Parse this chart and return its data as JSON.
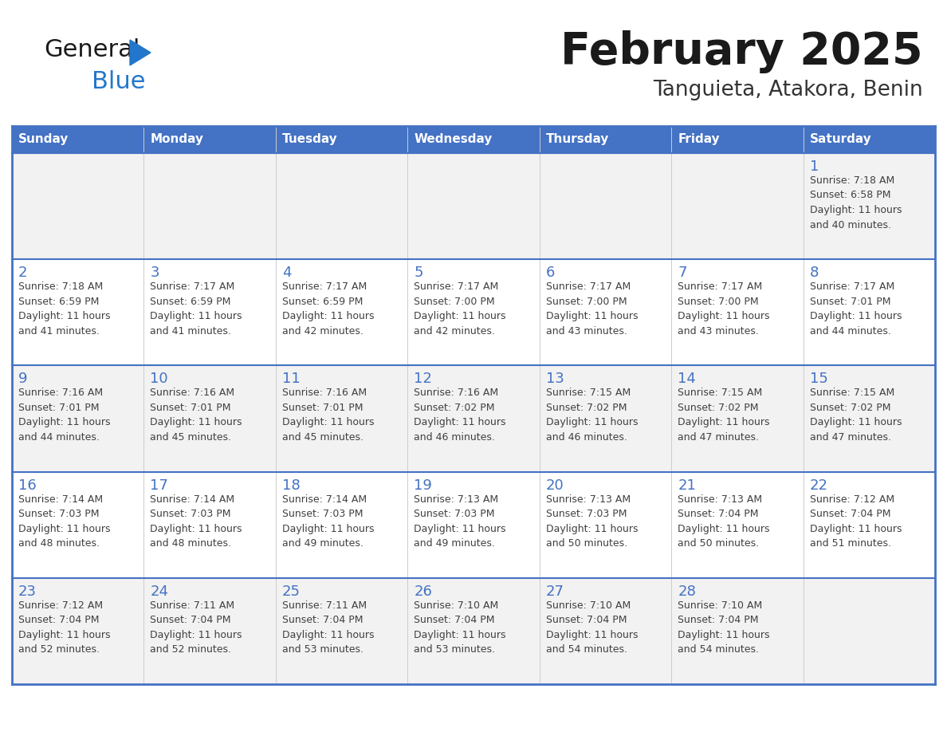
{
  "title": "February 2025",
  "subtitle": "Tanguieta, Atakora, Benin",
  "header_bg": "#4472C4",
  "header_text": "#FFFFFF",
  "day_names": [
    "Sunday",
    "Monday",
    "Tuesday",
    "Wednesday",
    "Thursday",
    "Friday",
    "Saturday"
  ],
  "row_bg": [
    "#F2F2F2",
    "#FFFFFF",
    "#F2F2F2",
    "#FFFFFF",
    "#F2F2F2"
  ],
  "border_color": "#4472C4",
  "day_num_color": "#4472C4",
  "info_color": "#404040",
  "title_color": "#1a1a1a",
  "subtitle_color": "#333333",
  "logo_general_color": "#1a1a1a",
  "logo_blue_color": "#2277CC",
  "logo_triangle_color": "#2277CC",
  "calendar": [
    [
      {
        "day": 0,
        "info": ""
      },
      {
        "day": 0,
        "info": ""
      },
      {
        "day": 0,
        "info": ""
      },
      {
        "day": 0,
        "info": ""
      },
      {
        "day": 0,
        "info": ""
      },
      {
        "day": 0,
        "info": ""
      },
      {
        "day": 1,
        "info": "Sunrise: 7:18 AM\nSunset: 6:58 PM\nDaylight: 11 hours\nand 40 minutes."
      }
    ],
    [
      {
        "day": 2,
        "info": "Sunrise: 7:18 AM\nSunset: 6:59 PM\nDaylight: 11 hours\nand 41 minutes."
      },
      {
        "day": 3,
        "info": "Sunrise: 7:17 AM\nSunset: 6:59 PM\nDaylight: 11 hours\nand 41 minutes."
      },
      {
        "day": 4,
        "info": "Sunrise: 7:17 AM\nSunset: 6:59 PM\nDaylight: 11 hours\nand 42 minutes."
      },
      {
        "day": 5,
        "info": "Sunrise: 7:17 AM\nSunset: 7:00 PM\nDaylight: 11 hours\nand 42 minutes."
      },
      {
        "day": 6,
        "info": "Sunrise: 7:17 AM\nSunset: 7:00 PM\nDaylight: 11 hours\nand 43 minutes."
      },
      {
        "day": 7,
        "info": "Sunrise: 7:17 AM\nSunset: 7:00 PM\nDaylight: 11 hours\nand 43 minutes."
      },
      {
        "day": 8,
        "info": "Sunrise: 7:17 AM\nSunset: 7:01 PM\nDaylight: 11 hours\nand 44 minutes."
      }
    ],
    [
      {
        "day": 9,
        "info": "Sunrise: 7:16 AM\nSunset: 7:01 PM\nDaylight: 11 hours\nand 44 minutes."
      },
      {
        "day": 10,
        "info": "Sunrise: 7:16 AM\nSunset: 7:01 PM\nDaylight: 11 hours\nand 45 minutes."
      },
      {
        "day": 11,
        "info": "Sunrise: 7:16 AM\nSunset: 7:01 PM\nDaylight: 11 hours\nand 45 minutes."
      },
      {
        "day": 12,
        "info": "Sunrise: 7:16 AM\nSunset: 7:02 PM\nDaylight: 11 hours\nand 46 minutes."
      },
      {
        "day": 13,
        "info": "Sunrise: 7:15 AM\nSunset: 7:02 PM\nDaylight: 11 hours\nand 46 minutes."
      },
      {
        "day": 14,
        "info": "Sunrise: 7:15 AM\nSunset: 7:02 PM\nDaylight: 11 hours\nand 47 minutes."
      },
      {
        "day": 15,
        "info": "Sunrise: 7:15 AM\nSunset: 7:02 PM\nDaylight: 11 hours\nand 47 minutes."
      }
    ],
    [
      {
        "day": 16,
        "info": "Sunrise: 7:14 AM\nSunset: 7:03 PM\nDaylight: 11 hours\nand 48 minutes."
      },
      {
        "day": 17,
        "info": "Sunrise: 7:14 AM\nSunset: 7:03 PM\nDaylight: 11 hours\nand 48 minutes."
      },
      {
        "day": 18,
        "info": "Sunrise: 7:14 AM\nSunset: 7:03 PM\nDaylight: 11 hours\nand 49 minutes."
      },
      {
        "day": 19,
        "info": "Sunrise: 7:13 AM\nSunset: 7:03 PM\nDaylight: 11 hours\nand 49 minutes."
      },
      {
        "day": 20,
        "info": "Sunrise: 7:13 AM\nSunset: 7:03 PM\nDaylight: 11 hours\nand 50 minutes."
      },
      {
        "day": 21,
        "info": "Sunrise: 7:13 AM\nSunset: 7:04 PM\nDaylight: 11 hours\nand 50 minutes."
      },
      {
        "day": 22,
        "info": "Sunrise: 7:12 AM\nSunset: 7:04 PM\nDaylight: 11 hours\nand 51 minutes."
      }
    ],
    [
      {
        "day": 23,
        "info": "Sunrise: 7:12 AM\nSunset: 7:04 PM\nDaylight: 11 hours\nand 52 minutes."
      },
      {
        "day": 24,
        "info": "Sunrise: 7:11 AM\nSunset: 7:04 PM\nDaylight: 11 hours\nand 52 minutes."
      },
      {
        "day": 25,
        "info": "Sunrise: 7:11 AM\nSunset: 7:04 PM\nDaylight: 11 hours\nand 53 minutes."
      },
      {
        "day": 26,
        "info": "Sunrise: 7:10 AM\nSunset: 7:04 PM\nDaylight: 11 hours\nand 53 minutes."
      },
      {
        "day": 27,
        "info": "Sunrise: 7:10 AM\nSunset: 7:04 PM\nDaylight: 11 hours\nand 54 minutes."
      },
      {
        "day": 28,
        "info": "Sunrise: 7:10 AM\nSunset: 7:04 PM\nDaylight: 11 hours\nand 54 minutes."
      },
      {
        "day": 0,
        "info": ""
      }
    ]
  ]
}
